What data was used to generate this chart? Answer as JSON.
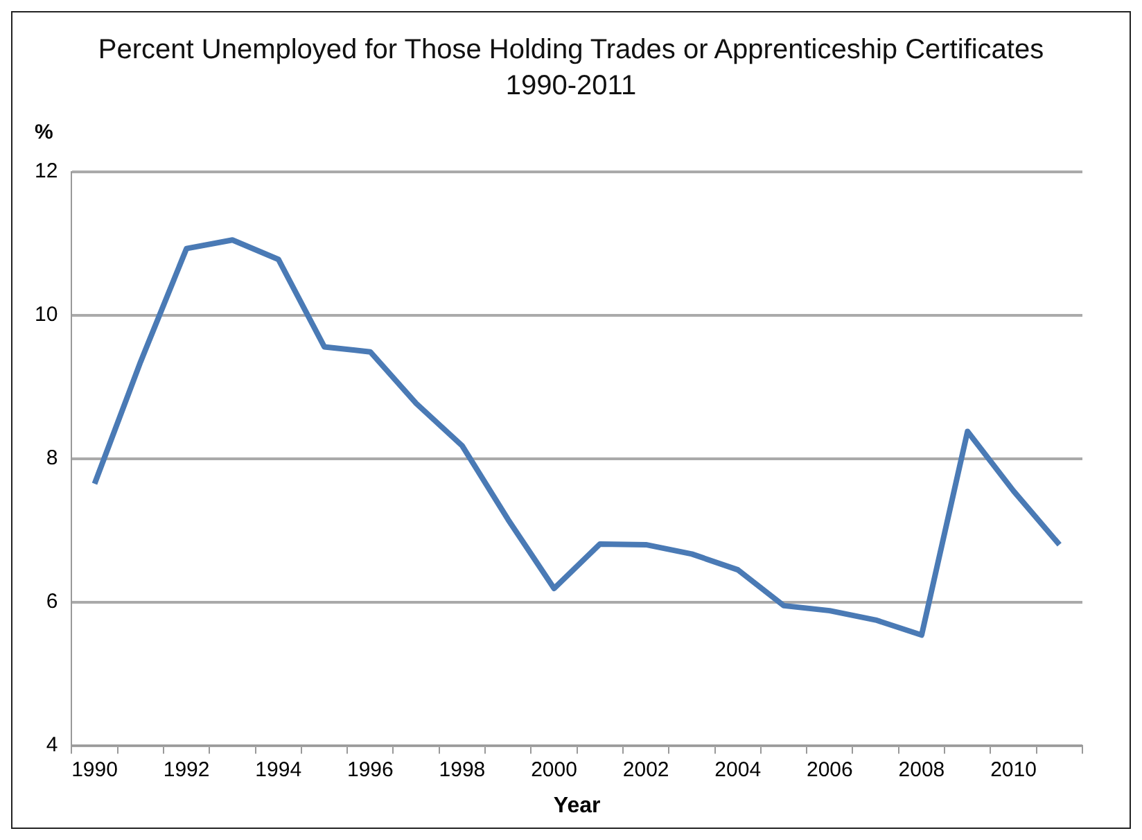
{
  "chart_data": {
    "type": "line",
    "title": "Percent Unemployed for Those Holding Trades or Apprenticeship Certificates",
    "subtitle": "1990-2011",
    "xlabel": "Year",
    "ylabel": "%",
    "categories": [
      "1990",
      null,
      "1992",
      null,
      "1994",
      null,
      "1996",
      null,
      "1998",
      null,
      "2000",
      null,
      "2002",
      null,
      "2004",
      null,
      "2006",
      null,
      "2008",
      null,
      "2010",
      null
    ],
    "series": [
      {
        "color": "#4a7ab5",
        "values": [
          7.65,
          9.35,
          10.93,
          11.05,
          10.78,
          9.56,
          9.49,
          8.77,
          8.18,
          7.15,
          6.19,
          6.81,
          6.8,
          6.67,
          6.45,
          5.95,
          5.88,
          5.75,
          5.54,
          8.38,
          7.55,
          6.8
        ]
      }
    ],
    "ylim": [
      4,
      12
    ],
    "yticks": [
      4,
      6,
      8,
      10,
      12
    ],
    "grid": "y",
    "legend": false,
    "marker": "none",
    "line_style": "solid"
  }
}
